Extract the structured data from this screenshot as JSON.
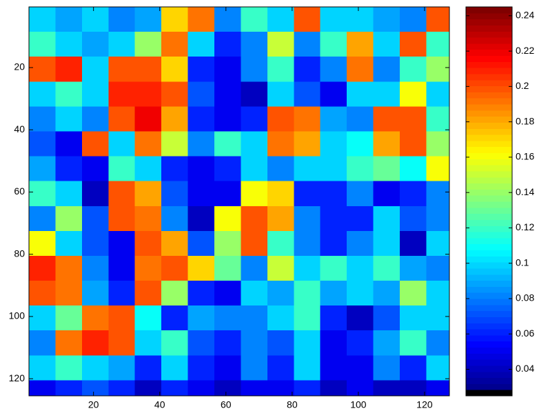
{
  "chart_data": {
    "type": "heatmap",
    "x": [
      4.5,
      12.5,
      20.5,
      28.5,
      36.5,
      44.5,
      52.5,
      60.5,
      68.5,
      76.5,
      84.5,
      92.5,
      100.5,
      108.5,
      116.5,
      124.5
    ],
    "y": [
      4.5,
      12.5,
      20.5,
      28.5,
      36.5,
      44.5,
      52.5,
      60.5,
      68.5,
      76.5,
      84.5,
      92.5,
      100.5,
      108.5,
      116.5,
      124.5
    ],
    "z": [
      [
        0.1,
        0.09,
        0.1,
        0.08,
        0.09,
        0.17,
        0.19,
        0.08,
        0.12,
        0.1,
        0.2,
        0.1,
        0.1,
        0.09,
        0.08,
        0.2
      ],
      [
        0.12,
        0.1,
        0.09,
        0.1,
        0.14,
        0.19,
        0.1,
        0.06,
        0.08,
        0.15,
        0.08,
        0.12,
        0.18,
        0.1,
        0.2,
        0.12
      ],
      [
        0.2,
        0.21,
        0.1,
        0.2,
        0.2,
        0.17,
        0.06,
        0.05,
        0.08,
        0.12,
        0.06,
        0.08,
        0.19,
        0.08,
        0.12,
        0.14
      ],
      [
        0.1,
        0.12,
        0.1,
        0.21,
        0.21,
        0.2,
        0.07,
        0.05,
        0.04,
        0.1,
        0.07,
        0.05,
        0.1,
        0.1,
        0.16,
        0.1
      ],
      [
        0.08,
        0.1,
        0.08,
        0.2,
        0.22,
        0.18,
        0.06,
        0.05,
        0.06,
        0.2,
        0.19,
        0.09,
        0.08,
        0.2,
        0.2,
        0.12
      ],
      [
        0.07,
        0.05,
        0.2,
        0.1,
        0.19,
        0.15,
        0.08,
        0.12,
        0.1,
        0.19,
        0.18,
        0.1,
        0.11,
        0.18,
        0.2,
        0.14
      ],
      [
        0.09,
        0.06,
        0.05,
        0.12,
        0.1,
        0.06,
        0.05,
        0.06,
        0.1,
        0.08,
        0.1,
        0.1,
        0.12,
        0.13,
        0.11,
        0.16
      ],
      [
        0.12,
        0.1,
        0.04,
        0.2,
        0.18,
        0.07,
        0.05,
        0.05,
        0.16,
        0.17,
        0.06,
        0.06,
        0.08,
        0.05,
        0.06,
        0.08
      ],
      [
        0.08,
        0.14,
        0.07,
        0.2,
        0.19,
        0.08,
        0.04,
        0.16,
        0.2,
        0.18,
        0.08,
        0.06,
        0.06,
        0.1,
        0.07,
        0.08
      ],
      [
        0.16,
        0.1,
        0.07,
        0.05,
        0.2,
        0.18,
        0.07,
        0.14,
        0.2,
        0.12,
        0.08,
        0.06,
        0.08,
        0.1,
        0.04,
        0.1
      ],
      [
        0.21,
        0.19,
        0.08,
        0.05,
        0.19,
        0.2,
        0.17,
        0.13,
        0.08,
        0.15,
        0.1,
        0.12,
        0.1,
        0.12,
        0.09,
        0.08
      ],
      [
        0.2,
        0.19,
        0.09,
        0.06,
        0.2,
        0.14,
        0.06,
        0.05,
        0.1,
        0.09,
        0.12,
        0.09,
        0.1,
        0.09,
        0.14,
        0.1
      ],
      [
        0.1,
        0.13,
        0.19,
        0.2,
        0.11,
        0.06,
        0.09,
        0.08,
        0.08,
        0.1,
        0.12,
        0.06,
        0.04,
        0.07,
        0.1,
        0.1
      ],
      [
        0.08,
        0.19,
        0.21,
        0.2,
        0.1,
        0.12,
        0.07,
        0.06,
        0.08,
        0.07,
        0.1,
        0.05,
        0.06,
        0.09,
        0.12,
        0.08
      ],
      [
        0.1,
        0.12,
        0.1,
        0.09,
        0.06,
        0.1,
        0.06,
        0.05,
        0.08,
        0.06,
        0.1,
        0.05,
        0.05,
        0.08,
        0.06,
        0.1
      ],
      [
        0.05,
        0.06,
        0.07,
        0.06,
        0.04,
        0.06,
        0.05,
        0.04,
        0.05,
        0.05,
        0.06,
        0.04,
        0.05,
        0.04,
        0.04,
        0.05
      ]
    ],
    "xlim": [
      0.5,
      127.5
    ],
    "ylim": [
      0.5,
      125.5
    ],
    "y_reversed": true,
    "xticks": [
      20,
      40,
      60,
      80,
      100,
      120
    ],
    "yticks": [
      20,
      40,
      60,
      80,
      100,
      120
    ],
    "colormap": "jet",
    "colormap_size": 64,
    "first_color": "#000000",
    "clim": [
      0.025,
      0.245
    ],
    "cticks": [
      0.04,
      0.06,
      0.08,
      0.1,
      0.12,
      0.14,
      0.16,
      0.18,
      0.2,
      0.22,
      0.24
    ]
  }
}
